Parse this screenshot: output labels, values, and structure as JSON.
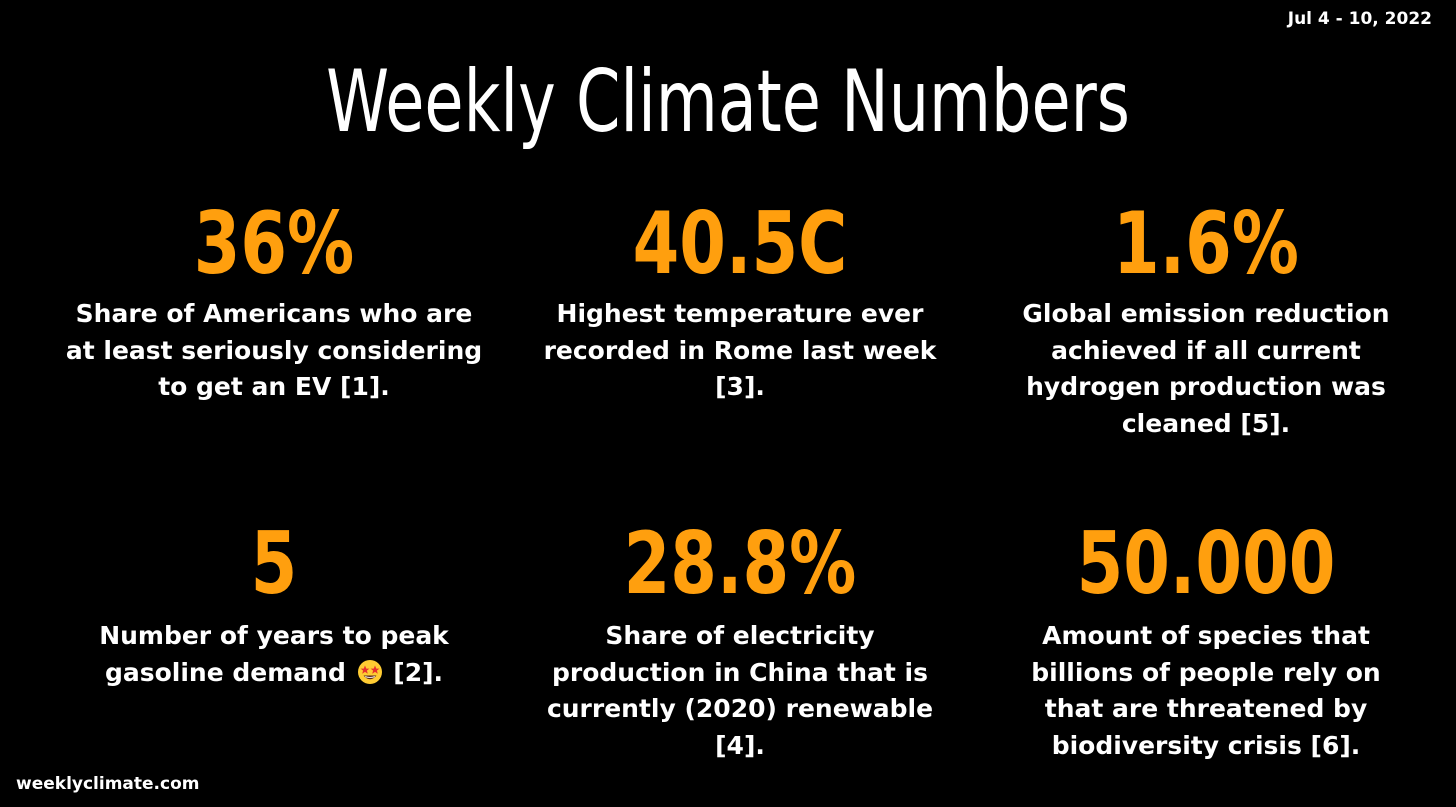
{
  "date_range": "Jul 4 - 10, 2022",
  "title": "Weekly Climate Numbers",
  "accent_color": "#ff9f0e",
  "stats": [
    {
      "value": "36%",
      "description": "Share of Americans who are at least seriously considering to get an EV [1]."
    },
    {
      "value": "40.5C",
      "description": "Highest temperature ever recorded in Rome last week [3]."
    },
    {
      "value": "1.6%",
      "description": "Global emission reduction achieved if all current hydrogen production was cleaned [5]."
    },
    {
      "value": "5",
      "description_before_emoji": "Number of years to peak gasoline demand",
      "emoji": "star-struck-emoji",
      "description_after_emoji": "[2]."
    },
    {
      "value": "28.8%",
      "description": "Share of electricity production in China that is currently (2020) renewable [4]."
    },
    {
      "value": "50.000",
      "description": "Amount of species that billions of people rely on that are threatened by biodiversity crisis [6]."
    }
  ],
  "footer": "weeklyclimate.com"
}
